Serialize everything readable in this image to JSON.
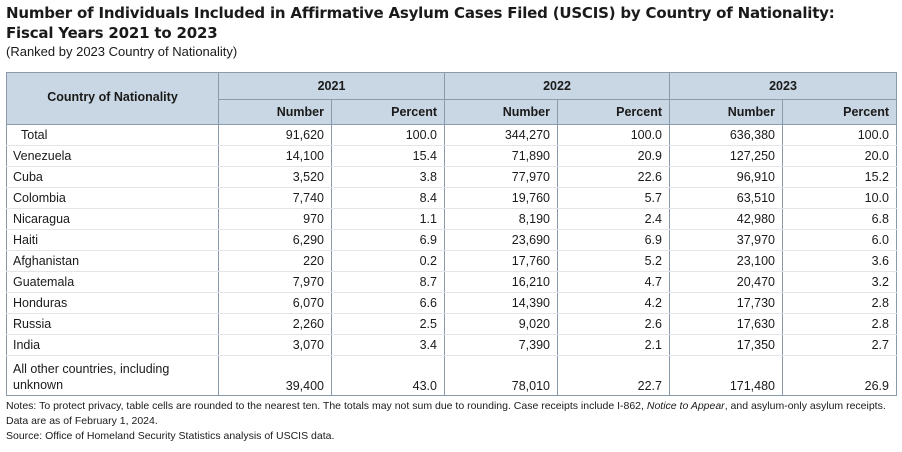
{
  "title_line1": "Number of Individuals Included in Affirmative Asylum Cases Filed (USCIS) by Country of Nationality:",
  "title_line2": "Fiscal Years 2021 to 2023",
  "subtitle": "(Ranked by 2023 Country of Nationality)",
  "header": {
    "country_label": "Country of Nationality",
    "years": [
      "2021",
      "2022",
      "2023"
    ],
    "number_label": "Number",
    "percent_label": "Percent"
  },
  "rows": [
    {
      "country": "Total",
      "v": [
        "91,620",
        "100.0",
        "344,270",
        "100.0",
        "636,380",
        "100.0"
      ]
    },
    {
      "country": "Venezuela",
      "v": [
        "14,100",
        "15.4",
        "71,890",
        "20.9",
        "127,250",
        "20.0"
      ]
    },
    {
      "country": "Cuba",
      "v": [
        "3,520",
        "3.8",
        "77,970",
        "22.6",
        "96,910",
        "15.2"
      ]
    },
    {
      "country": "Colombia",
      "v": [
        "7,740",
        "8.4",
        "19,760",
        "5.7",
        "63,510",
        "10.0"
      ]
    },
    {
      "country": "Nicaragua",
      "v": [
        "970",
        "1.1",
        "8,190",
        "2.4",
        "42,980",
        "6.8"
      ]
    },
    {
      "country": "Haiti",
      "v": [
        "6,290",
        "6.9",
        "23,690",
        "6.9",
        "37,970",
        "6.0"
      ]
    },
    {
      "country": "Afghanistan",
      "v": [
        "220",
        "0.2",
        "17,760",
        "5.2",
        "23,100",
        "3.6"
      ]
    },
    {
      "country": "Guatemala",
      "v": [
        "7,970",
        "8.7",
        "16,210",
        "4.7",
        "20,470",
        "3.2"
      ]
    },
    {
      "country": "Honduras",
      "v": [
        "6,070",
        "6.6",
        "14,390",
        "4.2",
        "17,730",
        "2.8"
      ]
    },
    {
      "country": "Russia",
      "v": [
        "2,260",
        "2.5",
        "9,020",
        "2.6",
        "17,630",
        "2.8"
      ]
    },
    {
      "country": "India",
      "v": [
        "3,070",
        "3.4",
        "7,390",
        "2.1",
        "17,350",
        "2.7"
      ]
    },
    {
      "country": "All other countries, including unknown",
      "v": [
        "39,400",
        "43.0",
        "78,010",
        "22.7",
        "171,480",
        "26.9"
      ]
    }
  ],
  "notes": {
    "line1_before": "Notes: To protect privacy, table cells are rounded to the nearest ten. The totals may not sum due to rounding. Case receipts include I-862, ",
    "line1_italic": "Notice to Appear",
    "line1_after": ", and asylum-only asylum receipts.",
    "line2": "Data are as of February 1, 2024.",
    "line3": "Source: Office of Homeland Security Statistics analysis of USCIS data."
  },
  "colors": {
    "header_bg": "#c9d6e3",
    "border": "#8a9aab"
  }
}
